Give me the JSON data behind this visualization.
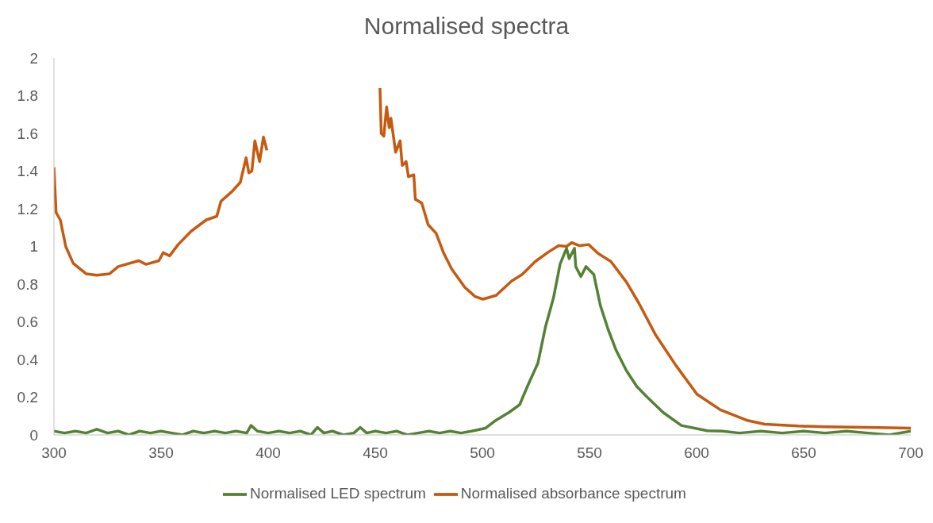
{
  "chart_data": {
    "type": "line",
    "title": "Normalised spectra",
    "xlim": [
      300,
      700
    ],
    "xticks": [
      300,
      350,
      400,
      450,
      500,
      550,
      600,
      650,
      700
    ],
    "ylim": [
      0,
      2
    ],
    "yticks": [
      0,
      0.2,
      0.4,
      0.6,
      0.8,
      1,
      1.2,
      1.4,
      1.6,
      1.8,
      2
    ],
    "grid": false,
    "legend": "bottom",
    "marker": "none",
    "line_style": "solid",
    "series": [
      {
        "name": "Normalised absorbance spectrum",
        "color": "#c55a11",
        "x": [
          300,
          301,
          303,
          305.5,
          309,
          315,
          320,
          326,
          330,
          339.6,
          343,
          349,
          351,
          354,
          358,
          364,
          371,
          376,
          378,
          383,
          387,
          389.7,
          391,
          392.4,
          393.8,
          396,
          397.8,
          399.4,
          426,
          452.2,
          452.8,
          454,
          455.3,
          456.5,
          457.3,
          459.5,
          461.6,
          462.6,
          464.4,
          465.5,
          468,
          468.7,
          471.7,
          474.7,
          478.4,
          482,
          485.7,
          491.8,
          496.6,
          500.3,
          506.4,
          513.7,
          518.6,
          524.7,
          530.8,
          535.6,
          539.3,
          541.7,
          545.4,
          549.6,
          554,
          560,
          567.3,
          573,
          580.7,
          590.4,
          600.2,
          611.1,
          623.3,
          631.8,
          647.6,
          659.8,
          680,
          700
        ],
        "values": [
          1.42,
          1.18,
          1.14,
          1.0,
          0.91,
          0.855,
          0.847,
          0.855,
          0.893,
          0.924,
          0.905,
          0.924,
          0.967,
          0.95,
          1.01,
          1.08,
          1.14,
          1.16,
          1.24,
          1.29,
          1.34,
          1.47,
          1.39,
          1.4,
          1.56,
          1.45,
          1.58,
          1.51,
          null,
          1.84,
          1.6,
          1.585,
          1.74,
          1.63,
          1.68,
          1.5,
          1.56,
          1.43,
          1.45,
          1.37,
          1.38,
          1.25,
          1.23,
          1.115,
          1.07,
          0.963,
          0.88,
          0.783,
          0.734,
          0.72,
          0.74,
          0.817,
          0.852,
          0.92,
          0.97,
          1.004,
          1.0,
          1.02,
          1.004,
          1.01,
          0.963,
          0.92,
          0.81,
          0.7,
          0.534,
          0.368,
          0.216,
          0.133,
          0.078,
          0.057,
          0.047,
          0.043,
          0.04,
          0.036
        ]
      },
      {
        "name": "Normalised LED spectrum",
        "color": "#548235",
        "x": [
          300,
          305,
          310,
          315,
          320,
          325,
          330,
          335,
          340,
          345,
          350,
          355,
          360,
          365,
          370,
          375,
          380,
          385,
          390,
          392,
          395,
          400,
          405,
          410,
          415,
          420,
          423,
          426,
          430,
          435,
          440,
          443,
          446,
          450,
          455,
          460,
          465,
          470,
          475,
          480,
          485,
          490,
          495,
          501.5,
          506.4,
          512.5,
          517.4,
          521,
          525.9,
          529.5,
          533.2,
          536.3,
          539.3,
          540.5,
          543,
          543.6,
          546,
          548.4,
          552,
          555.1,
          558.7,
          562.4,
          567.3,
          572.1,
          577,
          584.3,
          592.9,
          605,
          612,
          620,
          630,
          640,
          650,
          660,
          670,
          680,
          690,
          700
        ],
        "values": [
          0.02,
          0.01,
          0.02,
          0.01,
          0.03,
          0.01,
          0.02,
          0.0,
          0.02,
          0.01,
          0.02,
          0.01,
          0.0,
          0.02,
          0.01,
          0.02,
          0.01,
          0.02,
          0.01,
          0.05,
          0.02,
          0.01,
          0.02,
          0.01,
          0.02,
          0.0,
          0.04,
          0.01,
          0.02,
          0.0,
          0.01,
          0.04,
          0.01,
          0.02,
          0.01,
          0.02,
          0.0,
          0.01,
          0.02,
          0.01,
          0.02,
          0.01,
          0.02,
          0.036,
          0.078,
          0.12,
          0.16,
          0.257,
          0.38,
          0.575,
          0.727,
          0.907,
          0.99,
          0.935,
          0.99,
          0.893,
          0.84,
          0.893,
          0.852,
          0.686,
          0.56,
          0.45,
          0.34,
          0.257,
          0.2,
          0.12,
          0.05,
          0.022,
          0.02,
          0.01,
          0.02,
          0.01,
          0.02,
          0.01,
          0.02,
          0.01,
          0.0,
          0.02
        ]
      }
    ]
  }
}
